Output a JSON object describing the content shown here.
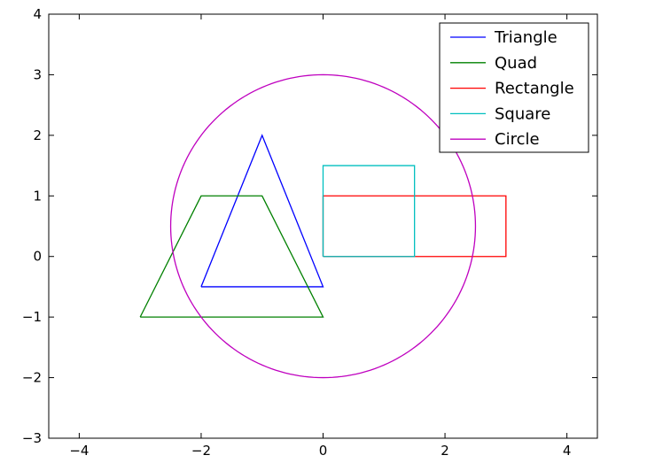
{
  "chart_data": {
    "type": "line",
    "title": "",
    "xlabel": "",
    "ylabel": "",
    "xlim": [
      -4.5,
      4.5
    ],
    "ylim": [
      -3,
      4
    ],
    "xticks": [
      -4,
      -2,
      0,
      2,
      4
    ],
    "xtick_labels": [
      "−4",
      "−2",
      "0",
      "2",
      "4"
    ],
    "yticks": [
      -3,
      -2,
      -1,
      0,
      1,
      2,
      3,
      4
    ],
    "ytick_labels": [
      "−3",
      "−2",
      "−1",
      "0",
      "1",
      "2",
      "3",
      "4"
    ],
    "grid": false,
    "legend_position": "top-right",
    "series": [
      {
        "name": "Triangle",
        "color": "#0000ff",
        "x": [
          -2,
          -1,
          0,
          -2
        ],
        "y": [
          -0.5,
          2,
          -0.5,
          -0.5
        ]
      },
      {
        "name": "Quad",
        "color": "#008000",
        "x": [
          -3,
          -2,
          -1,
          0,
          -3
        ],
        "y": [
          -1,
          1,
          1,
          -1,
          -1
        ]
      },
      {
        "name": "Rectangle",
        "color": "#ff0000",
        "x": [
          0,
          3,
          3,
          0,
          0
        ],
        "y": [
          0,
          0,
          1,
          1,
          0
        ]
      },
      {
        "name": "Square",
        "color": "#00bfbf",
        "x": [
          0,
          1.5,
          1.5,
          0,
          0
        ],
        "y": [
          0,
          0,
          1.5,
          1.5,
          0
        ]
      },
      {
        "name": "Circle",
        "color": "#bf00bf",
        "shape": "circle",
        "center": [
          0,
          0.5
        ],
        "radius": 2.5
      }
    ]
  }
}
